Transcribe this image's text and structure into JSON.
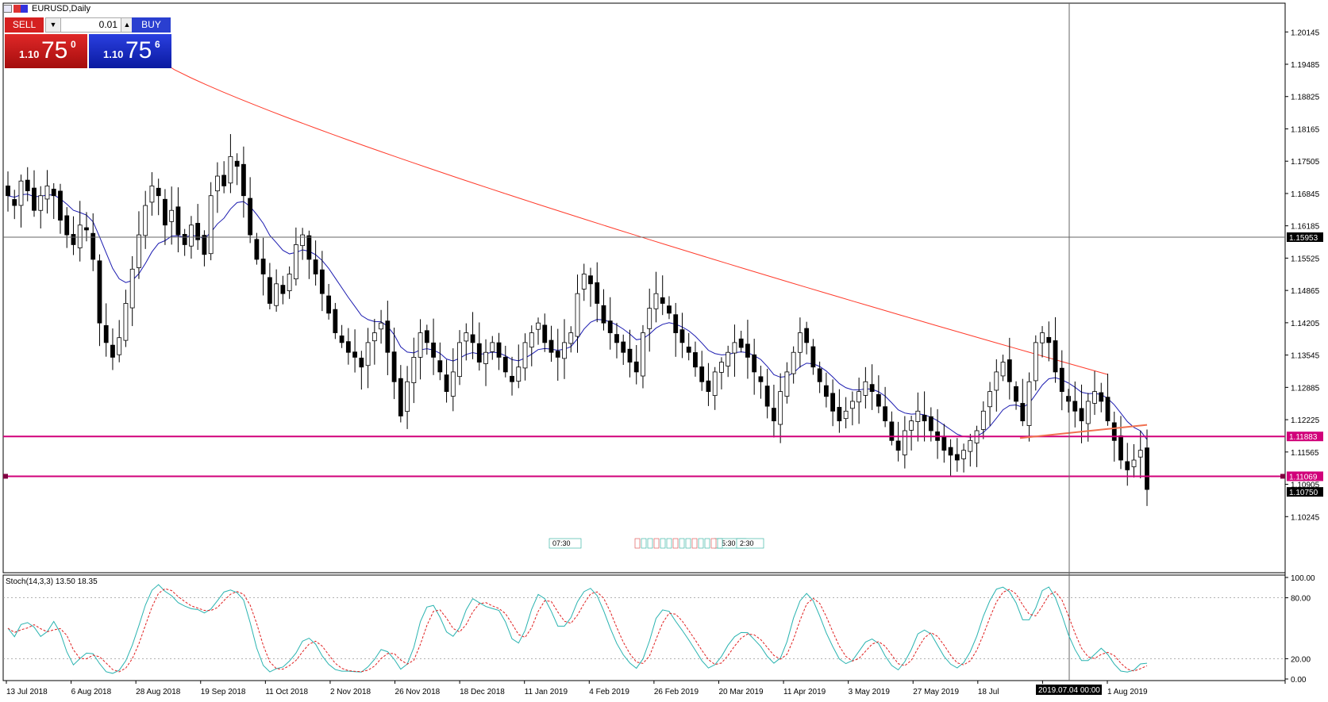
{
  "chart": {
    "symbol_title": "EURUSD,Daily"
  },
  "trade_panel": {
    "sell_label": "SELL",
    "buy_label": "BUY",
    "lot_value": "0.01",
    "sell_price": {
      "small": "1.10",
      "big": "75",
      "sup": "0"
    },
    "buy_price": {
      "small": "1.10",
      "big": "75",
      "sup": "6"
    }
  },
  "indicator": {
    "label": "Stoch(14,3,3) 13.50 18.35"
  },
  "cursor_time_label": "2019.07.04 00:00",
  "annotations_text": [
    "07:30",
    "15:30",
    "2:30"
  ],
  "colors": {
    "bull": "#ffffff",
    "bear": "#000000",
    "ma_fast": "#1b1bb0",
    "ma_slow": "#ff3b2b",
    "hline": "#d1007a",
    "stoch_main": "#29b3b0",
    "stoch_signal": "#e02020"
  },
  "chart_data": {
    "type": "candlestick",
    "title": "EURUSD,Daily",
    "y_axis_ticks": [
      "1.20145",
      "1.19485",
      "1.18825",
      "1.18165",
      "1.17505",
      "1.16845",
      "1.16185",
      "1.15525",
      "1.14865",
      "1.14205",
      "1.13545",
      "1.12885",
      "1.12225",
      "1.11565",
      "1.10905",
      "1.10245"
    ],
    "x_axis_ticks": [
      "13 Jul 2018",
      "6 Aug 2018",
      "28 Aug 2018",
      "19 Sep 2018",
      "11 Oct 2018",
      "2 Nov 2018",
      "26 Nov 2018",
      "18 Dec 2018",
      "11 Jan 2019",
      "4 Feb 2019",
      "26 Feb 2019",
      "20 Mar 2019",
      "11 Apr 2019",
      "3 May 2019",
      "27 May 2019",
      "18 Jul",
      "Jul 2019",
      "1 Aug 2019"
    ],
    "price_labels": [
      {
        "text": "1.15953",
        "style": "crosshair"
      },
      {
        "text": "1.11883",
        "style": "hline"
      },
      {
        "text": "1.11069",
        "style": "hline"
      },
      {
        "text": "1.10750",
        "style": "current"
      }
    ],
    "horizontal_levels": [
      1.11883,
      1.11069
    ],
    "crosshair_price": 1.15953,
    "ylim": [
      1.0978,
      1.207
    ],
    "candles_approx_close": [
      1.168,
      1.166,
      1.171,
      1.169,
      1.165,
      1.168,
      1.17,
      1.168,
      1.163,
      1.16,
      1.158,
      1.162,
      1.161,
      1.155,
      1.142,
      1.138,
      1.135,
      1.139,
      1.146,
      1.153,
      1.16,
      1.166,
      1.17,
      1.168,
      1.162,
      1.165,
      1.16,
      1.158,
      1.162,
      1.159,
      1.156,
      1.168,
      1.172,
      1.17,
      1.176,
      1.174,
      1.168,
      1.16,
      1.155,
      1.152,
      1.146,
      1.15,
      1.148,
      1.152,
      1.158,
      1.16,
      1.155,
      1.152,
      1.148,
      1.144,
      1.14,
      1.138,
      1.136,
      1.135,
      1.133,
      1.138,
      1.14,
      1.142,
      1.136,
      1.13,
      1.123,
      1.13,
      1.135,
      1.14,
      1.138,
      1.135,
      1.132,
      1.128,
      1.132,
      1.138,
      1.14,
      1.138,
      1.134,
      1.136,
      1.138,
      1.135,
      1.132,
      1.13,
      1.133,
      1.138,
      1.14,
      1.142,
      1.138,
      1.136,
      1.135,
      1.138,
      1.14,
      1.148,
      1.152,
      1.15,
      1.146,
      1.142,
      1.14,
      1.138,
      1.136,
      1.134,
      1.132,
      1.14,
      1.145,
      1.148,
      1.146,
      1.144,
      1.14,
      1.138,
      1.136,
      1.133,
      1.13,
      1.128,
      1.132,
      1.134,
      1.136,
      1.138,
      1.137,
      1.135,
      1.132,
      1.13,
      1.125,
      1.122,
      1.128,
      1.132,
      1.136,
      1.14,
      1.138,
      1.133,
      1.13,
      1.127,
      1.124,
      1.122,
      1.124,
      1.126,
      1.128,
      1.13,
      1.128,
      1.125,
      1.122,
      1.118,
      1.116,
      1.12,
      1.122,
      1.124,
      1.122,
      1.12,
      1.118,
      1.116,
      1.115,
      1.114,
      1.116,
      1.118,
      1.12,
      1.124,
      1.128,
      1.132,
      1.134,
      1.13,
      1.126,
      1.122,
      1.13,
      1.138,
      1.14,
      1.138,
      1.132,
      1.128,
      1.126,
      1.124,
      1.122,
      1.126,
      1.128,
      1.126,
      1.122,
      1.118,
      1.114,
      1.112,
      1.114,
      1.116,
      1.108
    ],
    "moving_averages": [
      {
        "name": "fast",
        "color": "#1b1bb0"
      },
      {
        "name": "slow",
        "color": "#ff3b2b"
      }
    ],
    "indicator": {
      "name": "Stoch(14,3,3)",
      "main": 13.5,
      "signal": 18.35,
      "y_axis_ticks": [
        "100.00",
        "80.00",
        "20.00",
        "0.00"
      ],
      "levels": [
        80,
        20
      ],
      "ylim": [
        0,
        100
      ]
    }
  }
}
